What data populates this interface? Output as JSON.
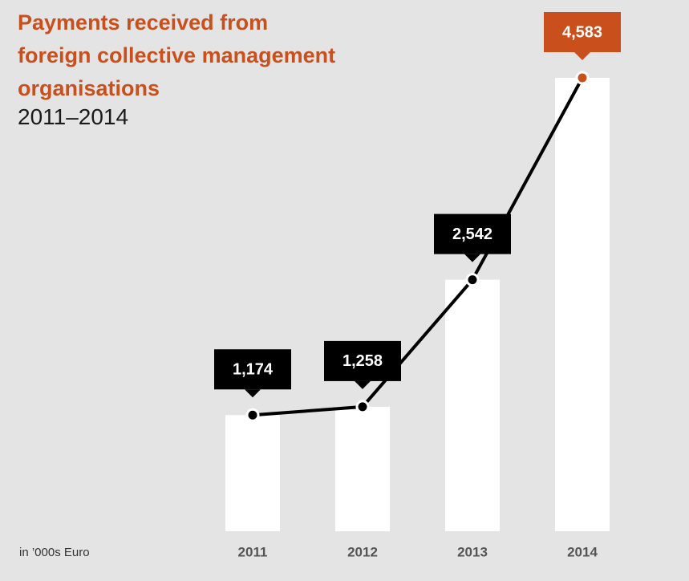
{
  "chart_data": {
    "type": "bar-line",
    "title": "Payments received from foreign collective management organisations",
    "subtitle": "2011–2014",
    "note": "in ’000s Euro",
    "categories": [
      "2011",
      "2012",
      "2013",
      "2014"
    ],
    "values": [
      1174,
      1258,
      2542,
      4583
    ],
    "value_labels": [
      "1,174",
      "1,258",
      "2,542",
      "4,583"
    ],
    "bar_color": "#ffffff",
    "line_color": "#000000",
    "highlight_color": "#c9501c"
  }
}
